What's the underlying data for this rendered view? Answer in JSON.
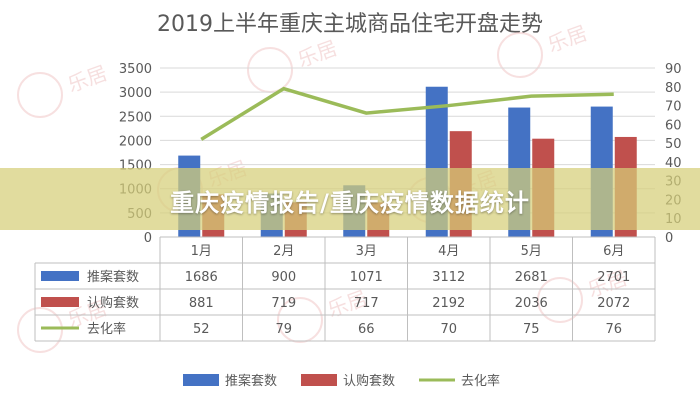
{
  "title": "2019上半年重庆主城商品住宅开盘走势",
  "banner": "重庆疫情报告/重庆疫情数据统计",
  "watermark": "乐居",
  "colors": {
    "bar1": "#4472c4",
    "bar2": "#c0504d",
    "line": "#9bbb59",
    "grid": "#d9d9d9",
    "axis_text": "#595959"
  },
  "chart_data": {
    "type": "bar",
    "title": "2019上半年重庆主城商品住宅开盘走势",
    "categories": [
      "1月",
      "2月",
      "3月",
      "4月",
      "5月",
      "6月"
    ],
    "series": [
      {
        "name": "推案套数",
        "type": "bar",
        "axis": "left",
        "values": [
          1686,
          900,
          1071,
          3112,
          2681,
          2701
        ]
      },
      {
        "name": "认购套数",
        "type": "bar",
        "axis": "left",
        "values": [
          881,
          719,
          717,
          2192,
          2036,
          2072
        ]
      },
      {
        "name": "去化率",
        "type": "line",
        "axis": "right",
        "values": [
          52,
          79,
          66,
          70,
          75,
          76
        ]
      }
    ],
    "ylim": [
      0,
      3500
    ],
    "yticks": [
      0,
      500,
      1000,
      1500,
      2000,
      2500,
      3000,
      3500
    ],
    "y2lim": [
      0,
      90
    ],
    "y2ticks": [
      0,
      10,
      20,
      30,
      40,
      50,
      60,
      70,
      80,
      90
    ],
    "grid": true,
    "legend": "bottom",
    "data_table": true
  }
}
